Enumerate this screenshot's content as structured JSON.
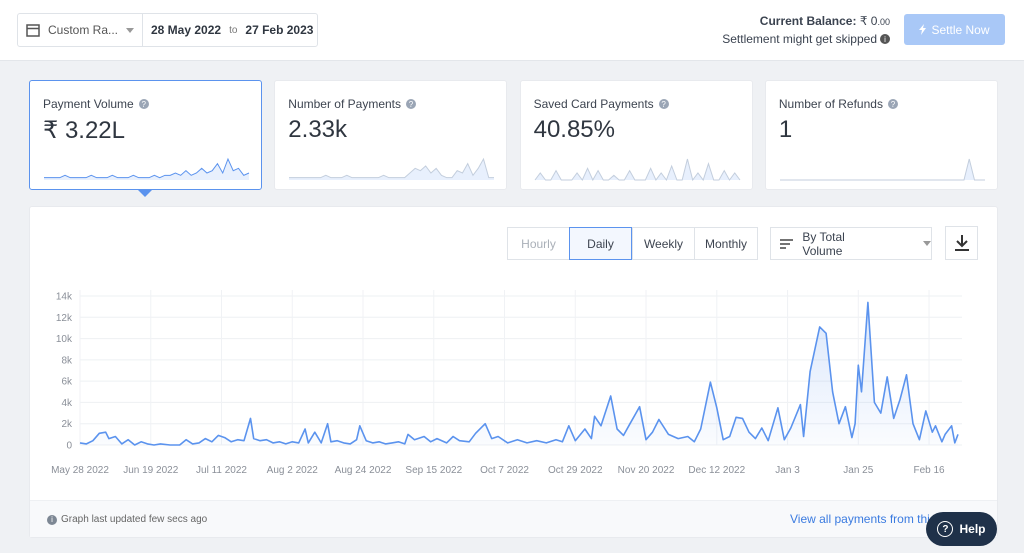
{
  "header": {
    "range_select": "Custom Ra...",
    "start_date": "28 May 2022",
    "to": "to",
    "end_date": "27 Feb 2023",
    "balance_label": "Current Balance:",
    "balance_amount": "₹ 0",
    "balance_decimals": ".00",
    "settlement_note": "Settlement might get skipped",
    "settle_button": "Settle Now"
  },
  "cards": [
    {
      "label": "Payment Volume",
      "value": "₹ 3.22L",
      "selected": true,
      "spark": [
        1,
        1,
        1,
        1,
        2,
        1,
        1,
        1,
        1,
        2,
        1,
        1,
        1,
        2,
        1,
        1,
        1,
        2,
        1,
        1,
        1,
        2,
        1,
        2,
        2,
        3,
        2,
        4,
        2,
        3,
        5,
        3,
        4,
        7,
        3,
        9,
        4,
        5,
        2,
        3
      ]
    },
    {
      "label": "Number of Payments",
      "value": "2.33k",
      "selected": false,
      "spark": [
        1,
        1,
        1,
        1,
        1,
        1,
        1,
        2,
        1,
        1,
        1,
        2,
        1,
        1,
        1,
        1,
        1,
        1,
        2,
        1,
        1,
        1,
        1,
        3,
        5,
        4,
        6,
        3,
        5,
        2,
        1,
        1,
        4,
        3,
        7,
        2,
        5,
        9,
        1,
        1
      ]
    },
    {
      "label": "Saved Card Payments",
      "value": "40.85%",
      "selected": false,
      "spark": [
        0,
        3,
        0,
        0,
        4,
        0,
        0,
        0,
        3,
        0,
        5,
        0,
        4,
        0,
        0,
        2,
        0,
        0,
        4,
        0,
        0,
        0,
        5,
        0,
        3,
        0,
        6,
        0,
        0,
        9,
        0,
        3,
        0,
        7,
        0,
        0,
        4,
        0,
        3,
        0
      ]
    },
    {
      "label": "Number of Refunds",
      "value": "1",
      "selected": false,
      "spark": [
        0,
        0,
        0,
        0,
        0,
        0,
        0,
        0,
        0,
        0,
        0,
        0,
        0,
        0,
        0,
        0,
        0,
        0,
        0,
        0,
        0,
        0,
        0,
        0,
        0,
        0,
        0,
        0,
        0,
        0,
        0,
        0,
        0,
        0,
        0,
        0,
        1,
        0,
        0,
        0
      ]
    }
  ],
  "controls": {
    "granularity": [
      "Hourly",
      "Daily",
      "Weekly",
      "Monthly"
    ],
    "selected_index": 1,
    "sort_select": "By Total Volume"
  },
  "chart_data": {
    "type": "line",
    "color": "#5b93ee",
    "grid": true,
    "area": true,
    "x": [
      0,
      2,
      4,
      6,
      8,
      9,
      11,
      13,
      15,
      17,
      19,
      21,
      23,
      25,
      28,
      31,
      33,
      35,
      37,
      39,
      41,
      43,
      45,
      47,
      49,
      51,
      53,
      54,
      56,
      58,
      60,
      62,
      64,
      66,
      68,
      70,
      71,
      73,
      75,
      77,
      78,
      80,
      82,
      84,
      86,
      87,
      89,
      91,
      93,
      95,
      97,
      99,
      101,
      102,
      104,
      107,
      109,
      111,
      114,
      116,
      118,
      121,
      123,
      126,
      128,
      130,
      133,
      136,
      139,
      142,
      145,
      148,
      150,
      152,
      154,
      157,
      159,
      160,
      162,
      165,
      167,
      169,
      171,
      174,
      176,
      178,
      180,
      183,
      186,
      189,
      191,
      193,
      196,
      198,
      200,
      202,
      204,
      206,
      208,
      210,
      212,
      214,
      217,
      219,
      221,
      224,
      225,
      227,
      230,
      232,
      234,
      236,
      238,
      240,
      241,
      242,
      243,
      245,
      247,
      249,
      251,
      253,
      255,
      257,
      259,
      261,
      263,
      265,
      266,
      268,
      269,
      271,
      272,
      273
    ],
    "values": [
      200,
      100,
      400,
      1100,
      1200,
      600,
      800,
      100,
      500,
      0,
      300,
      100,
      0,
      100,
      0,
      0,
      500,
      100,
      200,
      600,
      300,
      900,
      700,
      300,
      500,
      400,
      2500,
      600,
      400,
      500,
      200,
      300,
      100,
      300,
      200,
      1500,
      200,
      1200,
      200,
      2000,
      300,
      400,
      200,
      100,
      500,
      1800,
      400,
      200,
      300,
      100,
      200,
      300,
      100,
      1000,
      500,
      800,
      300,
      600,
      200,
      800,
      400,
      300,
      1100,
      2000,
      600,
      800,
      200,
      500,
      200,
      400,
      200,
      500,
      300,
      1800,
      400,
      1500,
      600,
      2700,
      1800,
      4600,
      1500,
      900,
      2000,
      3600,
      500,
      1200,
      2400,
      1000,
      600,
      800,
      300,
      1500,
      5900,
      3500,
      500,
      800,
      2600,
      2500,
      1200,
      600,
      1600,
      400,
      3500,
      500,
      1600,
      3800,
      800,
      6900,
      11100,
      10500,
      5000,
      2000,
      3600,
      700,
      2000,
      7500,
      5000,
      13400,
      4000,
      3000,
      6400,
      2500,
      4300,
      6600,
      2000,
      500,
      3200,
      1200,
      1800,
      300,
      1000,
      1800,
      200,
      1000
    ],
    "xlim": [
      0,
      273
    ],
    "xticks": [
      {
        "value": 0,
        "label": "May 28 2022"
      },
      {
        "value": 22,
        "label": "Jun 19 2022"
      },
      {
        "value": 44,
        "label": "Jul 11 2022"
      },
      {
        "value": 66,
        "label": "Aug 2 2022"
      },
      {
        "value": 88,
        "label": "Aug 24 2022"
      },
      {
        "value": 110,
        "label": "Sep 15 2022"
      },
      {
        "value": 132,
        "label": "Oct 7 2022"
      },
      {
        "value": 154,
        "label": "Oct 29 2022"
      },
      {
        "value": 176,
        "label": "Nov 20 2022"
      },
      {
        "value": 198,
        "label": "Dec 12 2022"
      },
      {
        "value": 220,
        "label": "Jan 3"
      },
      {
        "value": 242,
        "label": "Jan 25"
      },
      {
        "value": 264,
        "label": "Feb 16"
      }
    ],
    "ylim": [
      0,
      14000
    ],
    "yticks": [
      0,
      {
        "value": 2000,
        "label": "2k"
      },
      {
        "value": 4000,
        "label": "4k"
      },
      {
        "value": 6000,
        "label": "6k"
      },
      {
        "value": 8000,
        "label": "8k"
      },
      {
        "value": 10000,
        "label": "10k"
      },
      {
        "value": 12000,
        "label": "12k"
      },
      {
        "value": 14000,
        "label": "14k"
      }
    ]
  },
  "footer": {
    "updated_note": "Graph last updated few secs ago",
    "view_all_link": "View all payments from this",
    "help_button": "Help"
  }
}
